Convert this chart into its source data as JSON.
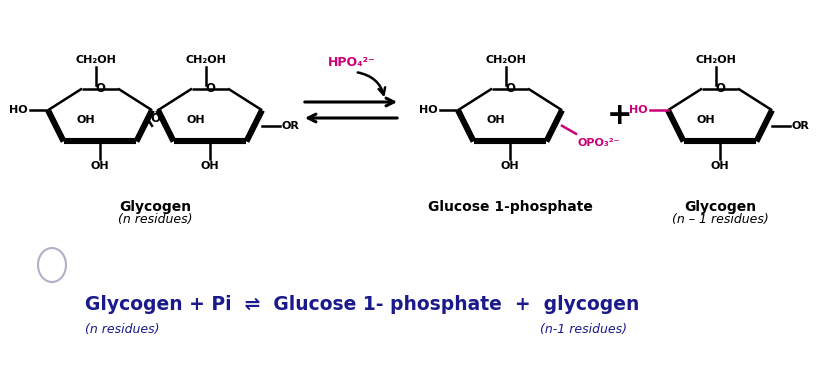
{
  "bg_color": "#ffffff",
  "black": "#000000",
  "magenta": "#cc0077",
  "dark_blue": "#1a1a8c",
  "label_glycogen": "Glycogen",
  "label_glycogen_sub": "(n residues)",
  "label_g1p": "Glucose 1-phosphate",
  "label_glycogen2": "Glycogen",
  "label_glycogen2_sub": "(n – 1 residues)",
  "hpo4_label": "HPO₄²⁻",
  "opo3_label": "OPO₃²⁻",
  "plus_sign": "+",
  "eq_line": "Glycogen + Pi  ⇌  Glucose 1- phosphate  +  glycogen",
  "sub1": "(n residues)",
  "sub2": "(n-1 residues)"
}
